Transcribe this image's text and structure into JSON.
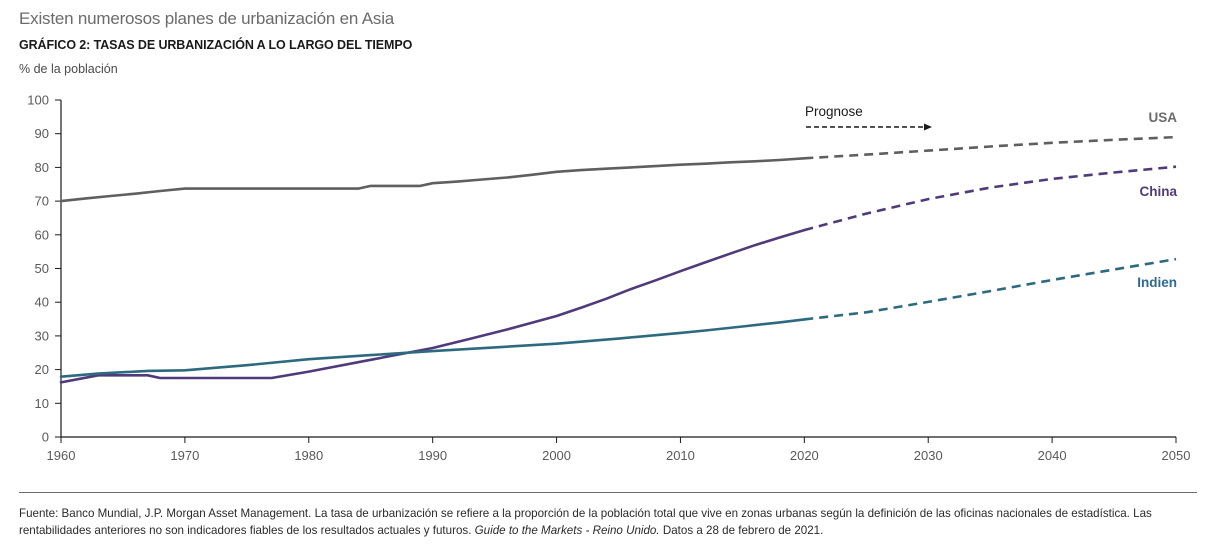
{
  "header": {
    "title": "Existen numerosos planes de urbanización en Asia",
    "subtitle": "GRÁFICO 2: TASAS DE URBANIZACIÓN A LO LARGO DEL TIEMPO",
    "unit": "% de la población"
  },
  "footer": {
    "source_prefix": "Fuente: Banco Mundial, J.P. Morgan Asset Management. La tasa de urbanización se refiere a la proporción de la población total que vive en zonas urbanas según la definición de las oficinas nacionales de estadística. Las rentabilidades anteriores no son indicadores fiables de los resultados actuales y futuros. ",
    "source_italic": "Guide to the Markets - Reino Unido.",
    "source_suffix": " Datos a 28 de febrero de 2021."
  },
  "chart_data": {
    "type": "line",
    "title": "GRÁFICO 2: TASAS DE URBANIZACIÓN A LO LARGO DEL TIEMPO",
    "xlabel": "",
    "ylabel": "% de la población",
    "xlim": [
      1960,
      2050
    ],
    "ylim": [
      0,
      100
    ],
    "x_ticks": [
      1960,
      1970,
      1980,
      1990,
      2000,
      2010,
      2020,
      2030,
      2040,
      2050
    ],
    "y_ticks": [
      0,
      10,
      20,
      30,
      40,
      50,
      60,
      70,
      80,
      90,
      100
    ],
    "grid": false,
    "forecast_start": 2020,
    "forecast_annotation": "Prognose",
    "series": [
      {
        "name": "USA",
        "color": "#5f5f5f",
        "x": [
          1960,
          1962,
          1964,
          1966,
          1968,
          1970,
          1975,
          1980,
          1984,
          1985,
          1989,
          1990,
          1992,
          1994,
          1996,
          1998,
          2000,
          2002,
          2004,
          2006,
          2008,
          2010,
          2012,
          2014,
          2016,
          2018,
          2020,
          2025,
          2030,
          2035,
          2040,
          2045,
          2050
        ],
        "values": [
          70.0,
          70.8,
          71.5,
          72.2,
          73.0,
          73.7,
          73.7,
          73.7,
          73.7,
          74.5,
          74.5,
          75.3,
          75.8,
          76.4,
          77.0,
          77.8,
          78.7,
          79.2,
          79.6,
          80.0,
          80.4,
          80.8,
          81.1,
          81.5,
          81.8,
          82.2,
          82.7,
          83.8,
          85.0,
          86.2,
          87.3,
          88.2,
          89.0
        ]
      },
      {
        "name": "China",
        "color": "#4f3b7a",
        "x": [
          1960,
          1963,
          1967,
          1968,
          1972,
          1977,
          1980,
          1985,
          1990,
          1993,
          1996,
          2000,
          2002,
          2004,
          2006,
          2008,
          2010,
          2012,
          2014,
          2016,
          2018,
          2020,
          2025,
          2030,
          2035,
          2040,
          2045,
          2050
        ],
        "values": [
          16.2,
          18.3,
          18.3,
          17.5,
          17.5,
          17.5,
          19.4,
          22.9,
          26.4,
          29.1,
          31.9,
          35.9,
          38.4,
          41.0,
          43.9,
          46.5,
          49.2,
          51.8,
          54.4,
          56.9,
          59.2,
          61.4,
          66.3,
          70.6,
          74.0,
          76.6,
          78.5,
          80.2
        ]
      },
      {
        "name": "Indien",
        "color": "#2d6a7f",
        "x": [
          1960,
          1963,
          1967,
          1970,
          1975,
          1980,
          1985,
          1990,
          1995,
          2000,
          2005,
          2010,
          2012,
          2015,
          2018,
          2020,
          2025,
          2030,
          2035,
          2040,
          2045,
          2050
        ],
        "values": [
          17.9,
          18.8,
          19.6,
          19.8,
          21.3,
          23.1,
          24.3,
          25.5,
          26.6,
          27.7,
          29.2,
          30.9,
          31.6,
          32.8,
          34.0,
          34.9,
          37.0,
          40.1,
          43.3,
          46.6,
          49.7,
          52.8
        ]
      }
    ],
    "series_labels": [
      {
        "series": "USA",
        "text": "USA"
      },
      {
        "series": "China",
        "text": "China"
      },
      {
        "series": "Indien",
        "text": "Indien"
      }
    ]
  }
}
